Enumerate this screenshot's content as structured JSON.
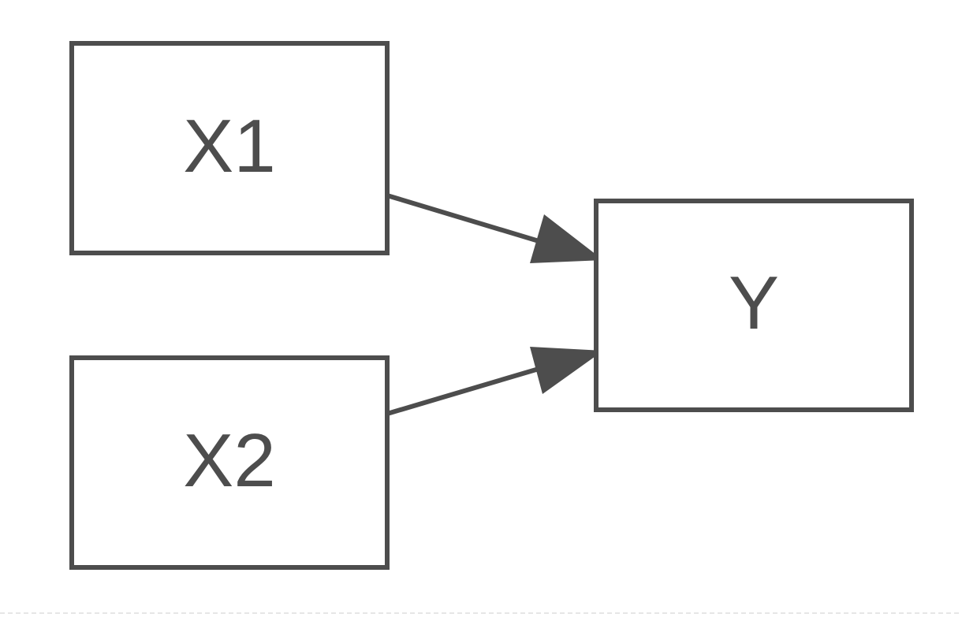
{
  "colors": {
    "stroke": "#4d4d4d",
    "text": "#4d4d4d",
    "node_fill": "#ffffff",
    "background": "#ffffff",
    "bottom_rule": "#e6e6e6"
  },
  "nodes": [
    {
      "id": "x1",
      "label": "X1"
    },
    {
      "id": "x2",
      "label": "X2"
    },
    {
      "id": "y",
      "label": "Y"
    }
  ],
  "edges": [
    {
      "from": "X1",
      "to": "Y"
    },
    {
      "from": "X2",
      "to": "Y"
    }
  ]
}
